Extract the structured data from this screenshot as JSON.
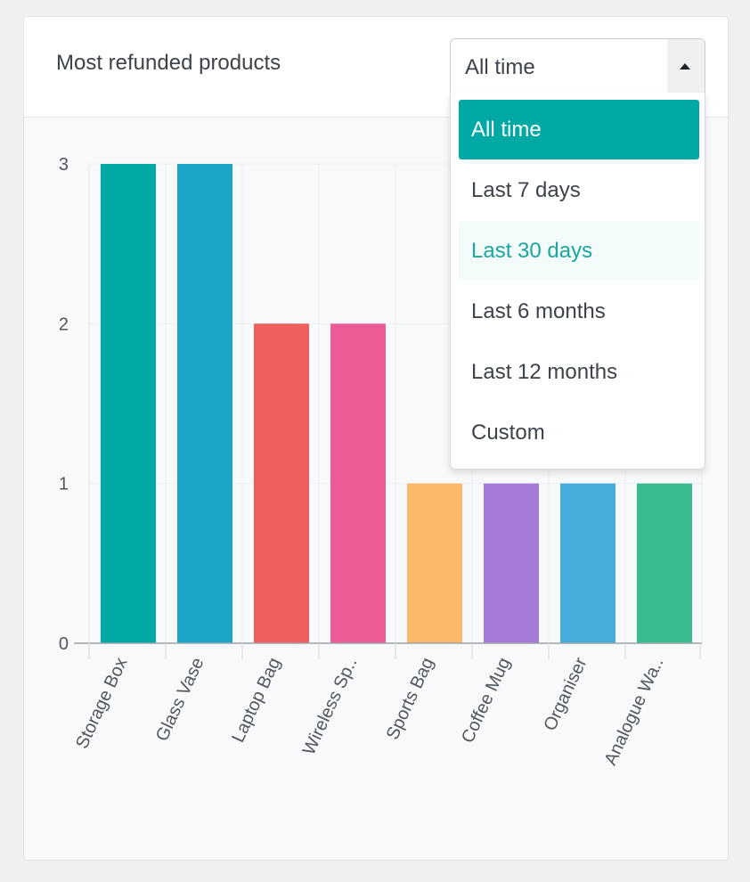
{
  "card": {
    "title": "Most refunded products"
  },
  "range_select": {
    "value": "All time",
    "options": [
      {
        "label": "All time",
        "state": "selected"
      },
      {
        "label": "Last 7 days",
        "state": "normal"
      },
      {
        "label": "Last 30 days",
        "state": "hovered"
      },
      {
        "label": "Last 6 months",
        "state": "normal"
      },
      {
        "label": "Last 12 months",
        "state": "normal"
      },
      {
        "label": "Custom",
        "state": "normal"
      }
    ]
  },
  "chart_data": {
    "type": "bar",
    "categories": [
      "Storage Box",
      "Glass Vase",
      "Laptop Bag",
      "Wireless Sp..",
      "Sports Bag",
      "Coffee Mug",
      "Organiser",
      "Analogue Wa.."
    ],
    "values": [
      3,
      3,
      2,
      2,
      1,
      1,
      1,
      1
    ],
    "colors": [
      "#00a9a4",
      "#1ba6c9",
      "#ef5d5c",
      "#ec5b95",
      "#fdb96a",
      "#a57ad8",
      "#45acdb",
      "#39bc8d"
    ],
    "yticks": [
      "0",
      "1",
      "2",
      "3"
    ],
    "ylim": [
      0,
      3
    ],
    "grid": true,
    "legend": "none"
  }
}
